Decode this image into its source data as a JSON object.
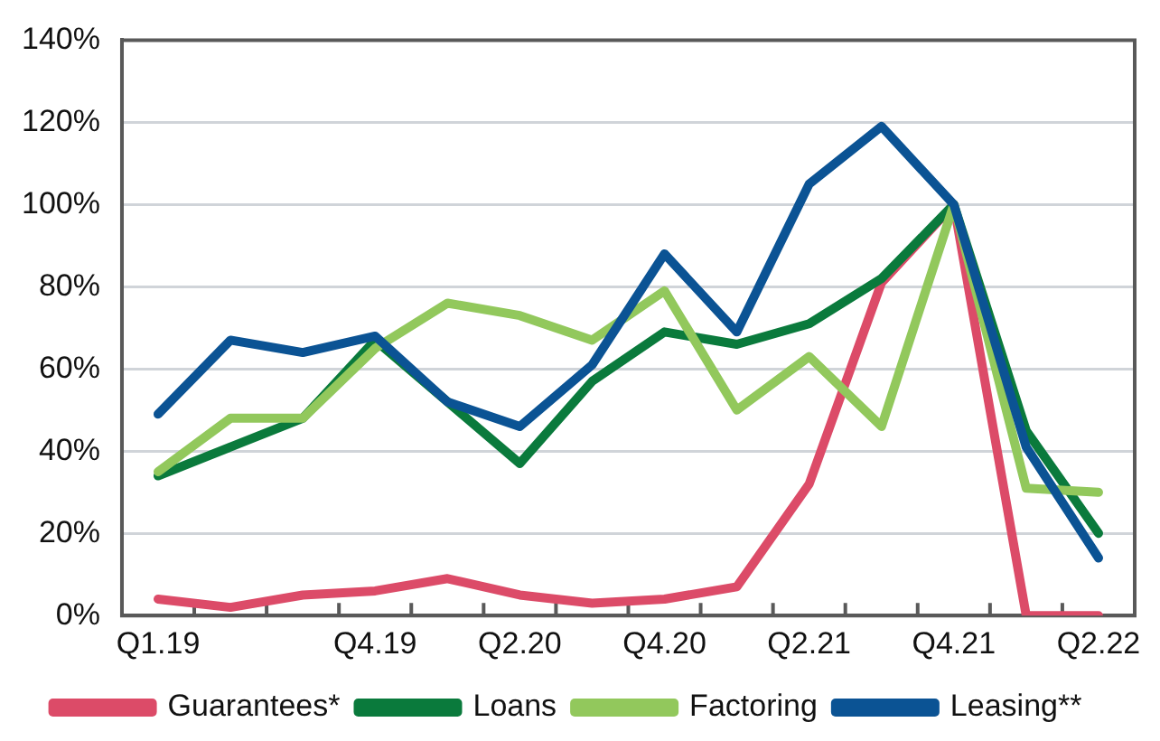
{
  "chart_data": {
    "type": "line",
    "categories": [
      "Q1.19",
      null,
      null,
      "Q4.19",
      null,
      "Q2.20",
      null,
      "Q4.20",
      null,
      "Q2.21",
      null,
      "Q4.21",
      null,
      "Q2.22"
    ],
    "series": [
      {
        "name": "Guarantees*",
        "color": "#dc4b68",
        "values": [
          4,
          2,
          5,
          6,
          9,
          5,
          3,
          4,
          7,
          32,
          81,
          100,
          0,
          0
        ]
      },
      {
        "name": "Loans",
        "color": "#0a7a3c",
        "values": [
          34,
          41,
          48,
          67,
          52,
          37,
          57,
          69,
          66,
          71,
          82,
          100,
          45,
          20
        ]
      },
      {
        "name": "Factoring",
        "color": "#92c85c",
        "values": [
          35,
          48,
          48,
          65,
          76,
          73,
          67,
          79,
          50,
          63,
          46,
          100,
          31,
          30
        ]
      },
      {
        "name": "Leasing**",
        "color": "#0b5394",
        "values": [
          49,
          67,
          64,
          68,
          52,
          46,
          61,
          88,
          69,
          105,
          119,
          100,
          41,
          14
        ]
      }
    ],
    "ylim": [
      0,
      140
    ],
    "yticks": [
      {
        "value": 0,
        "label": "0%"
      },
      {
        "value": 20,
        "label": "20%"
      },
      {
        "value": 40,
        "label": "40%"
      },
      {
        "value": 60,
        "label": "60%"
      },
      {
        "value": 80,
        "label": "80%"
      },
      {
        "value": 100,
        "label": "100%"
      },
      {
        "value": 120,
        "label": "120%"
      },
      {
        "value": 140,
        "label": "140%"
      }
    ],
    "grid": "y",
    "legend": "bottom",
    "marker": "none",
    "line_style": "solid"
  }
}
